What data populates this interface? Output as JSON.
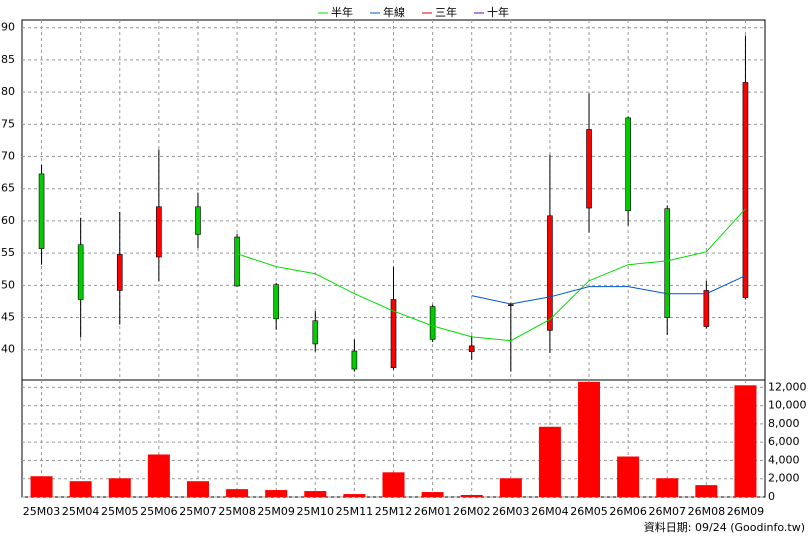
{
  "chart_data": [
    {
      "type": "candlestick",
      "categories": [
        "25M03",
        "25M04",
        "25M05",
        "25M06",
        "25M07",
        "25M08",
        "25M09",
        "25M10",
        "25M11",
        "25M12",
        "26M01",
        "26M02",
        "26M03",
        "26M04",
        "26M05",
        "26M06",
        "26M07",
        "26M08",
        "26M09"
      ],
      "open": [
        67.3,
        56.3,
        49.2,
        54.4,
        62.2,
        57.5,
        50.1,
        44.5,
        39.8,
        37.2,
        46.7,
        39.7,
        47.0,
        43.0,
        62.0,
        76.0,
        61.9,
        43.6,
        48.1
      ],
      "high": [
        68.7,
        60.5,
        61.4,
        71.1,
        64.4,
        58.0,
        50.4,
        46.0,
        41.6,
        52.9,
        47.0,
        42.2,
        47.3,
        70.3,
        79.8,
        76.2,
        62.4,
        50.7,
        88.8
      ],
      "low": [
        53.2,
        41.9,
        43.9,
        50.6,
        55.8,
        49.8,
        43.1,
        39.7,
        36.6,
        36.9,
        41.2,
        38.4,
        36.6,
        39.5,
        58.2,
        59.3,
        42.3,
        43.3,
        47.8
      ],
      "close": [
        55.7,
        47.8,
        54.8,
        62.2,
        57.9,
        49.9,
        44.8,
        40.9,
        37.0,
        47.8,
        41.6,
        40.6,
        47.0,
        60.8,
        74.2,
        61.6,
        45.0,
        49.2,
        81.5
      ],
      "up_color": "#ff0000",
      "down_color": "#00cc00",
      "series": [
        {
          "name": "半年",
          "color": "#00dd00",
          "values": [
            null,
            null,
            null,
            null,
            null,
            54.9,
            52.9,
            51.8,
            48.7,
            46.0,
            43.7,
            42.0,
            41.4,
            44.7,
            50.7,
            53.2,
            53.8,
            55.2,
            61.9
          ]
        },
        {
          "name": "年線",
          "color": "#0055cc",
          "values": [
            null,
            null,
            null,
            null,
            null,
            null,
            null,
            null,
            null,
            null,
            null,
            48.4,
            47.1,
            48.2,
            49.8,
            49.8,
            48.7,
            48.7,
            51.5
          ]
        },
        {
          "name": "三年",
          "color": "#dd0000",
          "values": [
            null,
            null,
            null,
            null,
            null,
            null,
            null,
            null,
            null,
            null,
            null,
            null,
            null,
            null,
            null,
            null,
            null,
            null,
            null
          ]
        },
        {
          "name": "十年",
          "color": "#6600cc",
          "values": [
            null,
            null,
            null,
            null,
            null,
            null,
            null,
            null,
            null,
            null,
            null,
            null,
            null,
            null,
            null,
            null,
            null,
            null,
            null
          ]
        }
      ],
      "ylim": [
        35.3,
        91.2
      ],
      "yticks": [
        40,
        45,
        50,
        55,
        60,
        65,
        70,
        75,
        80,
        85,
        90
      ],
      "grid": true,
      "note": "資料日期: 09/24  (Goodinfo.tw)"
    },
    {
      "type": "bar",
      "color": "#ff0000",
      "values": [
        2270,
        1730,
        2050,
        4650,
        1730,
        860,
        760,
        650,
        320,
        2700,
        540,
        220,
        2050,
        7680,
        12600,
        4430,
        2050,
        1300,
        12220
      ],
      "ylim": [
        0,
        12800
      ],
      "yticks": [
        0,
        {
          "value": 2000,
          "label": "2,000"
        },
        {
          "value": 4000,
          "label": "4,000"
        },
        {
          "value": 6000,
          "label": "6,000"
        },
        {
          "value": 8000,
          "label": "8,000"
        },
        {
          "value": 10000,
          "label": "10,000"
        },
        {
          "value": 12000,
          "label": "12,000"
        }
      ],
      "grid": true
    }
  ]
}
